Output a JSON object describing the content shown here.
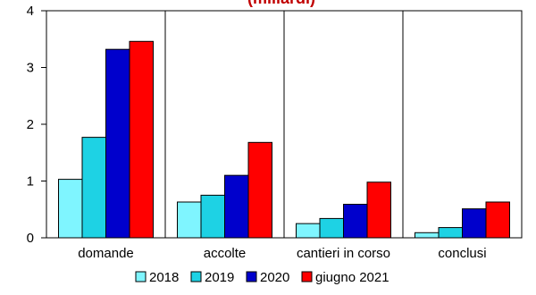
{
  "chart_data": {
    "type": "bar",
    "title": "(miliardi)",
    "categories": [
      "domande",
      "accolte",
      "cantieri in corso",
      "conclusi"
    ],
    "series": [
      {
        "name": "2018",
        "color": "#7ff5ff",
        "values": [
          1.03,
          0.63,
          0.25,
          0.09
        ]
      },
      {
        "name": "2019",
        "color": "#1ed2e4",
        "values": [
          1.77,
          0.75,
          0.34,
          0.18
        ]
      },
      {
        "name": "2020",
        "color": "#0000cc",
        "values": [
          3.32,
          1.1,
          0.59,
          0.51
        ]
      },
      {
        "name": "giugno 2021",
        "color": "#ff0000",
        "values": [
          3.46,
          1.68,
          0.98,
          0.63
        ]
      }
    ],
    "ylim": [
      0,
      4
    ],
    "yticks": [
      "0",
      "1",
      "2",
      "3",
      "4"
    ],
    "grid": "vertical category separators only",
    "legend": "bottom"
  }
}
